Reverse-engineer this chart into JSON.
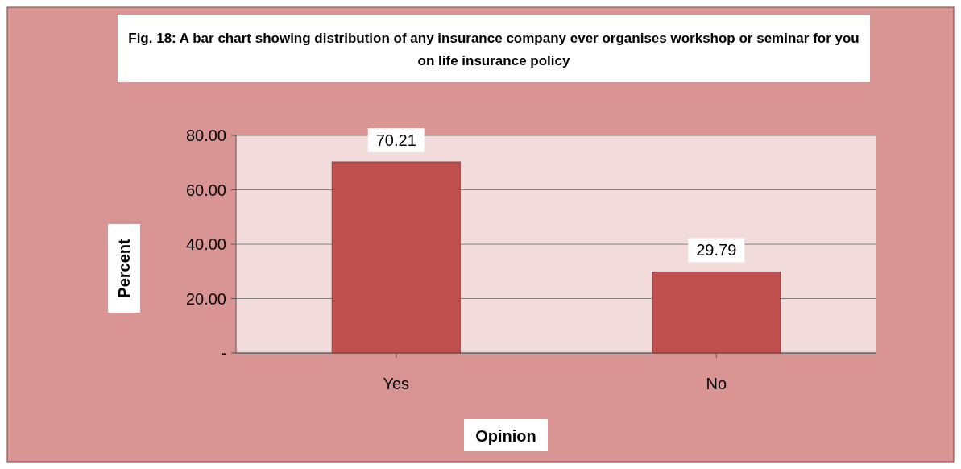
{
  "chart_data": {
    "type": "bar",
    "title": "Fig. 18: A bar chart showing distribution of any insurance company ever organises workshop or seminar for you on life insurance policy",
    "xlabel": "Opinion",
    "ylabel": "Percent",
    "categories": [
      "Yes",
      "No"
    ],
    "values": [
      70.21,
      29.79
    ],
    "color": "#c0504d",
    "ylim": [
      0,
      80
    ],
    "yticks": [
      {
        "value": 0,
        "label": "-"
      },
      {
        "value": 20,
        "label": "20.00"
      },
      {
        "value": 40,
        "label": "40.00"
      },
      {
        "value": 60,
        "label": "60.00"
      },
      {
        "value": 80,
        "label": "80.00"
      }
    ],
    "grid": true,
    "data_labels": true
  }
}
